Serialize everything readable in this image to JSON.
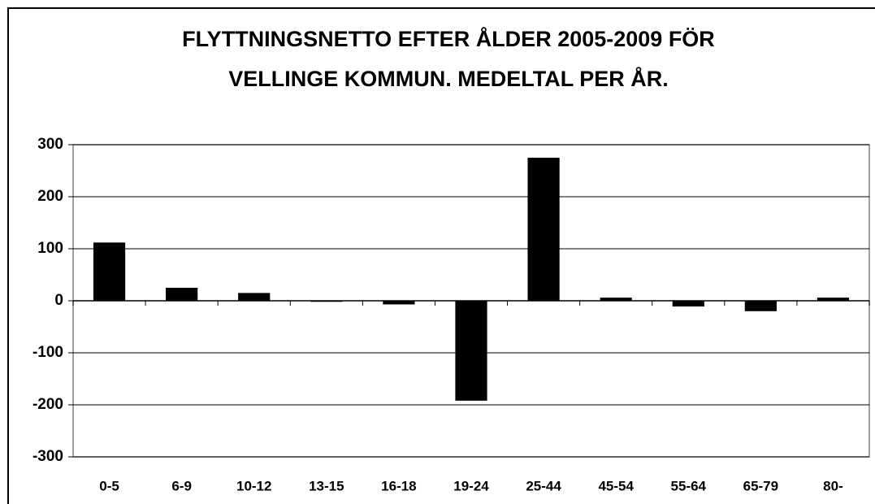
{
  "chart_data": {
    "type": "bar",
    "title": [
      "FLYTTNINGSNETTO EFTER ÅLDER 2005-2009 FÖR",
      "VELLINGE KOMMUN. MEDELTAL PER ÅR."
    ],
    "categories": [
      "0-5",
      "6-9",
      "10-12",
      "13-15",
      "16-18",
      "19-24",
      "25-44",
      "45-54",
      "55-64",
      "65-79",
      "80-"
    ],
    "values": [
      112,
      25,
      15,
      -2,
      -7,
      -192,
      275,
      6,
      -11,
      -20,
      6
    ],
    "color": "#000000",
    "ylim": [
      -300,
      300
    ],
    "yticks": [
      -300,
      -200,
      -100,
      0,
      100,
      200,
      300
    ],
    "grid": true
  }
}
